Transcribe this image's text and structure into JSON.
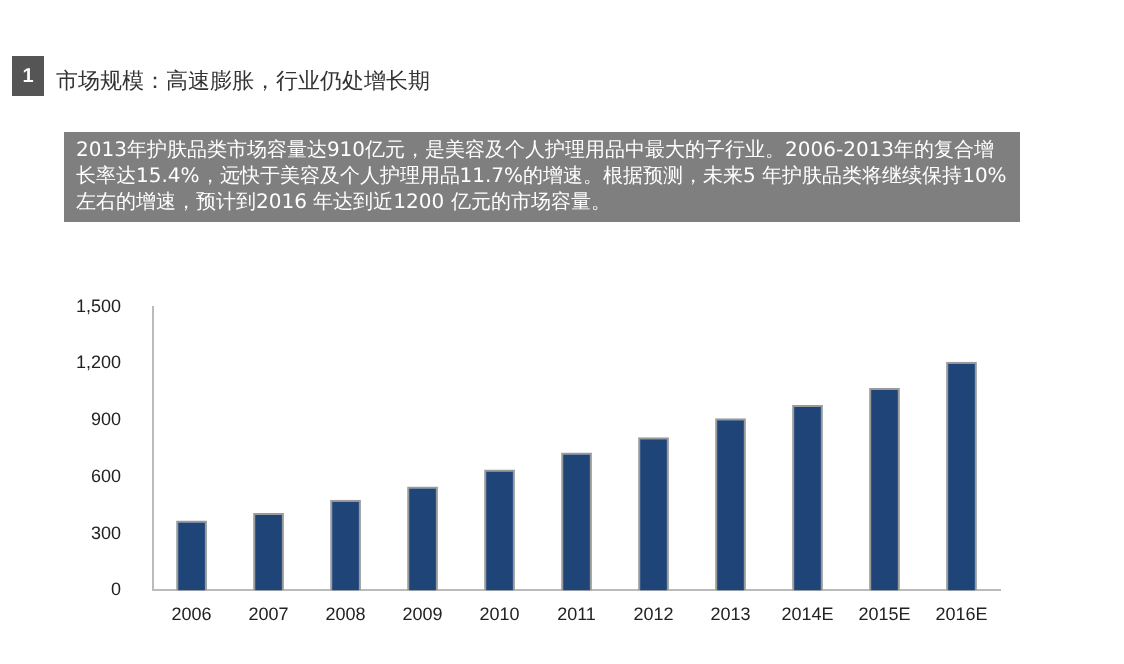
{
  "chart_data": {
    "type": "bar",
    "title": "市场规模：高速膨胀，行业仍处增长期",
    "subtitle": "2013年护肤品类市场容量达910亿元，是美容及个人护理用品中最大的子行业。2006-2013年的复合增长率达15.4%，远快于美容及个人护理用品11.7%的增速。根据预测，未来5 年护肤品类将继续保持10%左右的增速，预计到2016 年达到近1200 亿元的市场容量。",
    "annotations": [
      "1"
    ],
    "categories": [
      "2006",
      "2007",
      "2008",
      "2009",
      "2010",
      "2011",
      "2012",
      "2013",
      "2014E",
      "2015E",
      "2016E"
    ],
    "values": [
      370,
      410,
      480,
      550,
      640,
      730,
      810,
      910,
      980,
      1070,
      1210
    ],
    "color": "#1f4478",
    "ylim": [
      0,
      1500
    ],
    "yticks": [
      0,
      300,
      600,
      900,
      {
        "value": 1200,
        "label": "1,200"
      },
      {
        "value": 1500,
        "label": "1,500"
      }
    ],
    "grid": false
  }
}
